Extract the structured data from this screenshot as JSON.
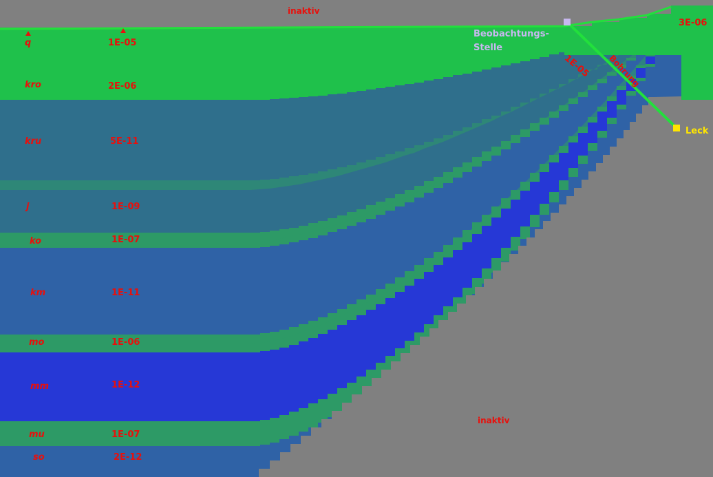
{
  "colors": {
    "inactive": "#808080",
    "green": "#1fc14b",
    "bright_green": "#22e03c",
    "teal": "#2f6f8c",
    "teal_green": "#2d9a66",
    "steel_blue": "#2f62a6",
    "blue": "#2638d6",
    "label_red": "#e8100c",
    "label_yellow": "#ffe600",
    "label_lilac": "#c8b8f0"
  },
  "inactive_label_top": "inaktiv",
  "inactive_label_bottom": "inaktiv",
  "top_right_value": "3E-06",
  "observation_label_line1": "Beobachtungs-",
  "observation_label_line2": "Stelle",
  "leak_label": "Leck",
  "borehole_value": "1E-05",
  "borehole_label": "Bohrung",
  "layers": [
    {
      "name": "q",
      "value": "1E-05"
    },
    {
      "name": "kro",
      "value": "2E-06"
    },
    {
      "name": "kru",
      "value": "5E-11"
    },
    {
      "name": "j",
      "value": "1E-09"
    },
    {
      "name": "ko",
      "value": "1E-07"
    },
    {
      "name": "km",
      "value": "1E-11"
    },
    {
      "name": "mo",
      "value": "1E-06"
    },
    {
      "name": "mm",
      "value": "1E-12"
    },
    {
      "name": "mu",
      "value": "1E-07"
    },
    {
      "name": "so",
      "value": "2E-12"
    }
  ]
}
